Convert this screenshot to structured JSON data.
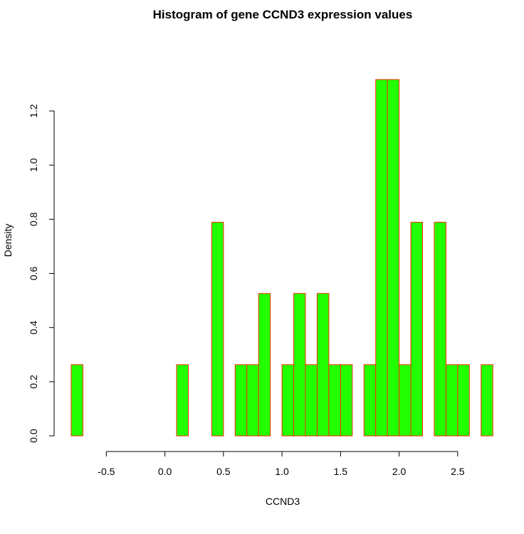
{
  "chart_data": {
    "type": "bar",
    "title": "Histogram of gene CCND3 expression values",
    "xlabel": "CCND3",
    "ylabel": "Density",
    "bin_width": 0.1,
    "bin_starts": [
      -0.8,
      -0.7,
      -0.6,
      -0.5,
      -0.4,
      -0.3,
      -0.2,
      -0.1,
      0.0,
      0.1,
      0.2,
      0.3,
      0.4,
      0.5,
      0.6,
      0.7,
      0.8,
      0.9,
      1.0,
      1.1,
      1.2,
      1.3,
      1.4,
      1.5,
      1.6,
      1.7,
      1.8,
      1.9,
      2.0,
      2.1,
      2.2,
      2.3,
      2.4,
      2.5,
      2.6,
      2.7
    ],
    "values": [
      0.263,
      0,
      0,
      0,
      0,
      0,
      0,
      0,
      0,
      0.263,
      0,
      0,
      0.789,
      0,
      0.263,
      0.263,
      0.526,
      0,
      0.263,
      0.526,
      0.263,
      0.526,
      0.263,
      0.263,
      0,
      0.263,
      1.316,
      1.316,
      0.263,
      0.789,
      0,
      0.789,
      0.263,
      0.263,
      0,
      0.263
    ],
    "xlim": [
      -0.8,
      2.8
    ],
    "ylim": [
      0,
      1.316
    ],
    "x_ticks": [
      "-0.5",
      "0.0",
      "0.5",
      "1.0",
      "1.5",
      "2.0",
      "2.5"
    ],
    "y_ticks": [
      "0.0",
      "0.2",
      "0.4",
      "0.6",
      "0.8",
      "1.0",
      "1.2"
    ],
    "grid": false,
    "legend": "none",
    "colors": {
      "bar_fill": "#22ff00",
      "bar_border": "#ff2a00",
      "axis": "#000000",
      "background": "#ffffff"
    }
  }
}
